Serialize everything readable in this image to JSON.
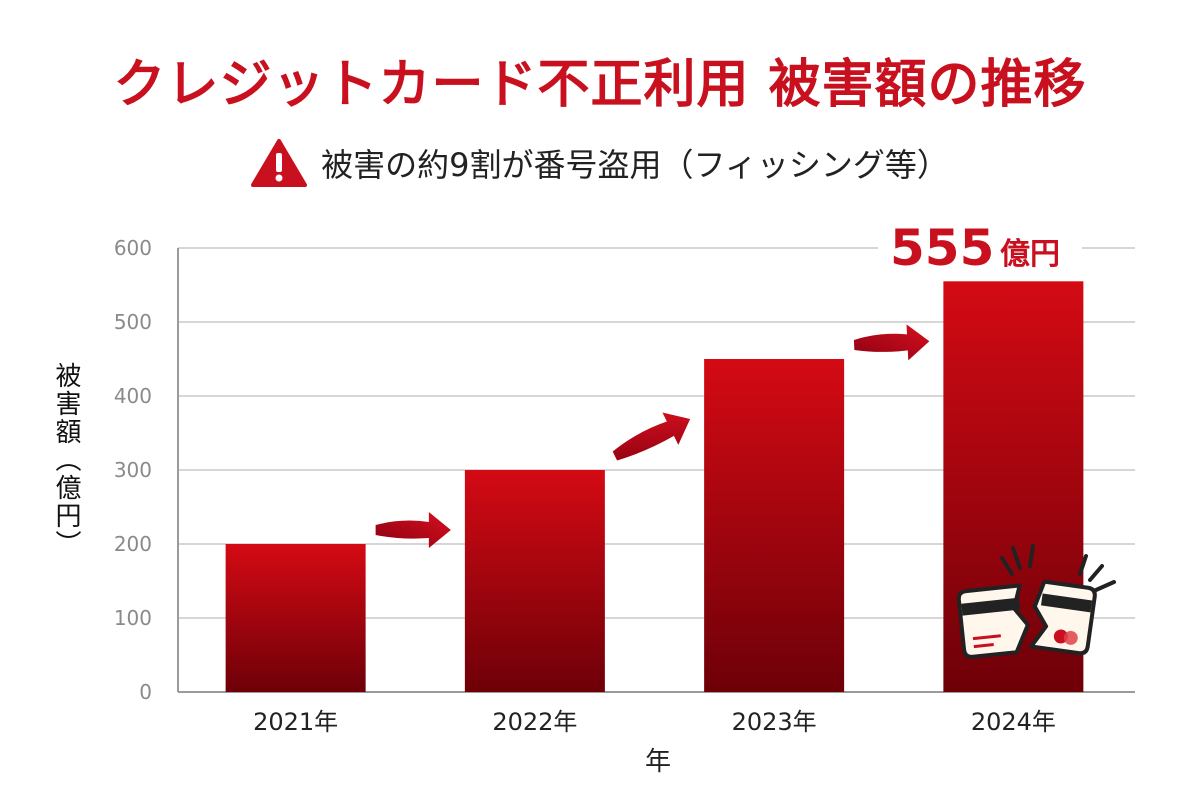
{
  "chart_data": {
    "type": "bar",
    "title": "クレジットカード不正利用 被害額の推移",
    "subtitle": "被害の約9割が番号盗用（フィッシング等）",
    "categories": [
      "2021年",
      "2022年",
      "2023年",
      "2024年"
    ],
    "values": [
      200,
      300,
      450,
      555
    ],
    "xlabel": "年",
    "ylabel": "被害額（億円）",
    "ylim": [
      0,
      600
    ],
    "yticks": [
      "0",
      "100",
      "200",
      "300",
      "400",
      "500",
      "600"
    ],
    "grid": true,
    "callout": {
      "value": "555",
      "unit": "億円"
    },
    "colors": {
      "accent": "#c8101e",
      "bar_top": "#d40a14",
      "bar_bottom": "#6e0008"
    },
    "icons": [
      "warning-icon",
      "broken-credit-card-icon",
      "trend-arrow-icon"
    ]
  }
}
